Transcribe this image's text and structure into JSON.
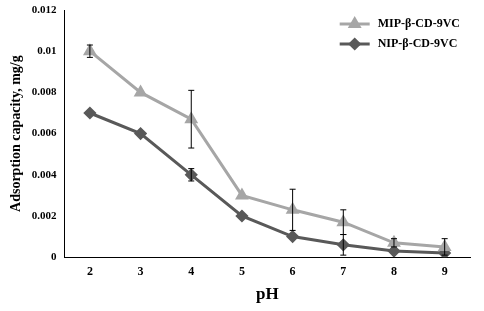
{
  "chart_data": {
    "type": "line",
    "x_label": "pH",
    "y_label": "Adsorption capacity, mg/g",
    "categories": [
      "2",
      "3",
      "4",
      "5",
      "6",
      "7",
      "8",
      "9"
    ],
    "series": [
      {
        "name": "MIP-β-CD-9VC",
        "color": "#a6a6a6",
        "marker": "triangle",
        "values": [
          0.01,
          0.008,
          0.0067,
          0.003,
          0.0023,
          0.0017,
          0.0007,
          0.0005
        ],
        "errors": [
          0.0003,
          null,
          0.0014,
          null,
          0.001,
          0.0006,
          0.0002,
          0.0004
        ]
      },
      {
        "name": "NIP-β-CD-9VC",
        "color": "#595959",
        "marker": "diamond",
        "values": [
          0.007,
          0.006,
          0.004,
          0.002,
          0.001,
          0.0006,
          0.0003,
          0.0002
        ],
        "errors": [
          null,
          null,
          0.0003,
          null,
          null,
          0.0005,
          null,
          null
        ]
      }
    ],
    "ylim": [
      0,
      0.012
    ],
    "yticks": [
      0,
      0.002,
      0.004,
      0.006,
      0.008,
      0.01,
      0.012
    ],
    "grid": false,
    "legend": "upper right"
  }
}
